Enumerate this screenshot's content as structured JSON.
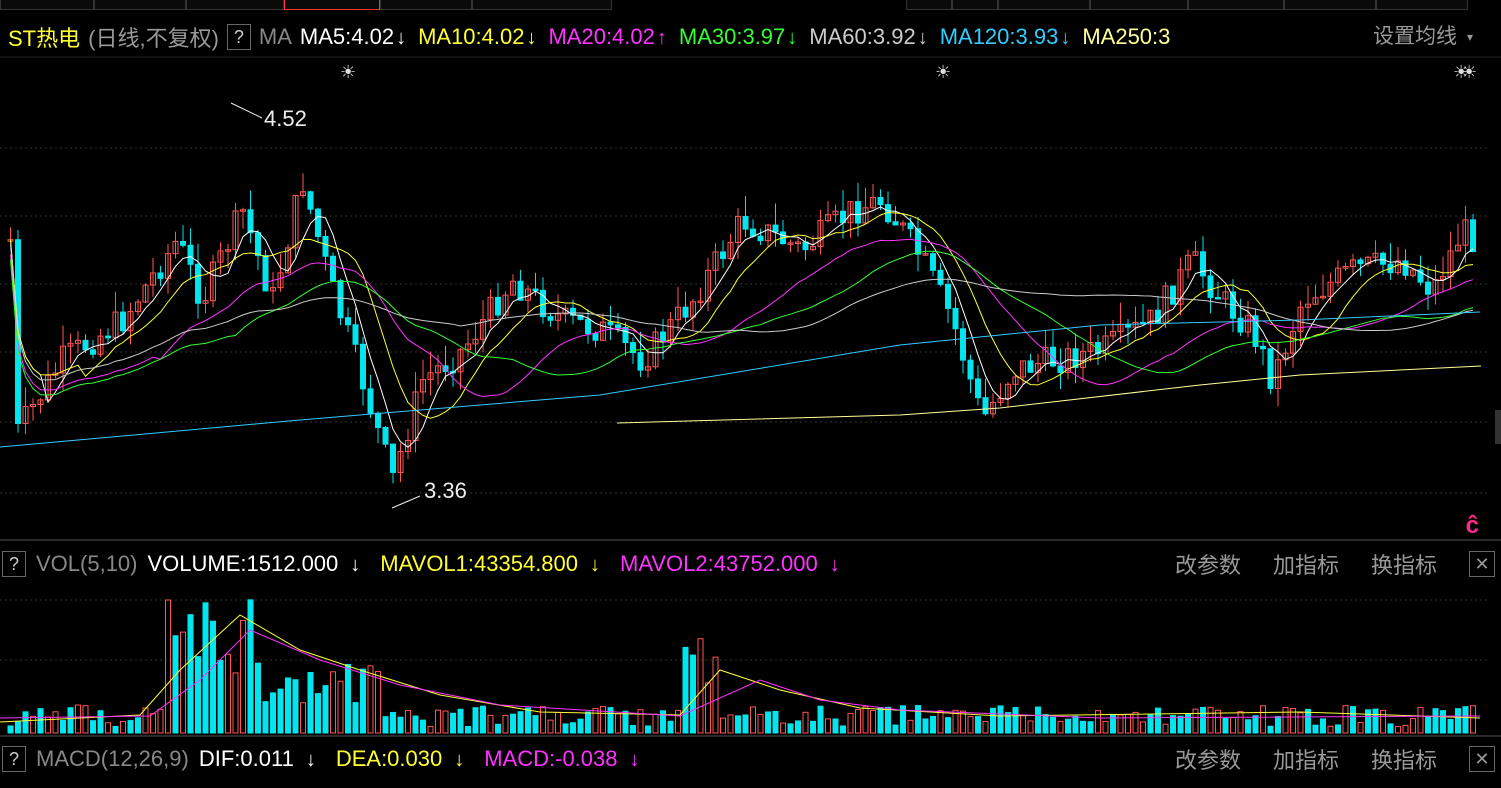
{
  "header": {
    "stock_name": "ST热电",
    "period": "(日线,不复权)",
    "help_label": "?",
    "ma_label": "MA",
    "ma_items": [
      {
        "text": "MA5:4.02",
        "arrow": "↓",
        "color": "#ffffff"
      },
      {
        "text": "MA10:4.02",
        "arrow": "↓",
        "color": "#ffff33"
      },
      {
        "text": "MA20:4.02",
        "arrow": "↑",
        "color": "#ff33ff"
      },
      {
        "text": "MA30:3.97",
        "arrow": "↓",
        "color": "#33ff33"
      },
      {
        "text": "MA60:3.92",
        "arrow": "↓",
        "color": "#cccccc"
      },
      {
        "text": "MA120:3.93",
        "arrow": "↓",
        "color": "#33ccff"
      },
      {
        "text": "MA250:3",
        "arrow": "",
        "color": "#ffff99"
      }
    ],
    "settings_label": "设置均线",
    "settings_caret": "▾"
  },
  "main_chart": {
    "high_label": "4.52",
    "low_label": "3.36",
    "event_marker": "☀",
    "corner_logo": "ĉ"
  },
  "volume_panel": {
    "help_label": "?",
    "name": "VOL(5,10)",
    "volume": "VOLUME:1512.000",
    "volume_arrow": "↓",
    "mavol1": "MAVOL1:43354.800",
    "mavol1_arrow": "↓",
    "mavol2": "MAVOL2:43752.000",
    "mavol2_arrow": "↓",
    "actions": [
      "改参数",
      "加指标",
      "换指标"
    ],
    "close": "✕"
  },
  "macd_panel": {
    "help_label": "?",
    "name": "MACD(12,26,9)",
    "dif": "DIF:0.011",
    "dif_arrow": "↓",
    "dea": "DEA:0.030",
    "dea_arrow": "↓",
    "macd": "MACD:-0.038",
    "macd_arrow": "↓",
    "actions": [
      "改参数",
      "加指标",
      "换指标"
    ],
    "close": "✕"
  },
  "colors": {
    "up": "#ff5555",
    "down": "#00e5ee",
    "grid": "#333333",
    "ma5": "#ffffff",
    "ma10": "#ffff33",
    "ma20": "#ff33ff",
    "ma30": "#33ff33",
    "ma60": "#cccccc",
    "ma120": "#33ccff",
    "ma250": "#ffff99"
  }
}
